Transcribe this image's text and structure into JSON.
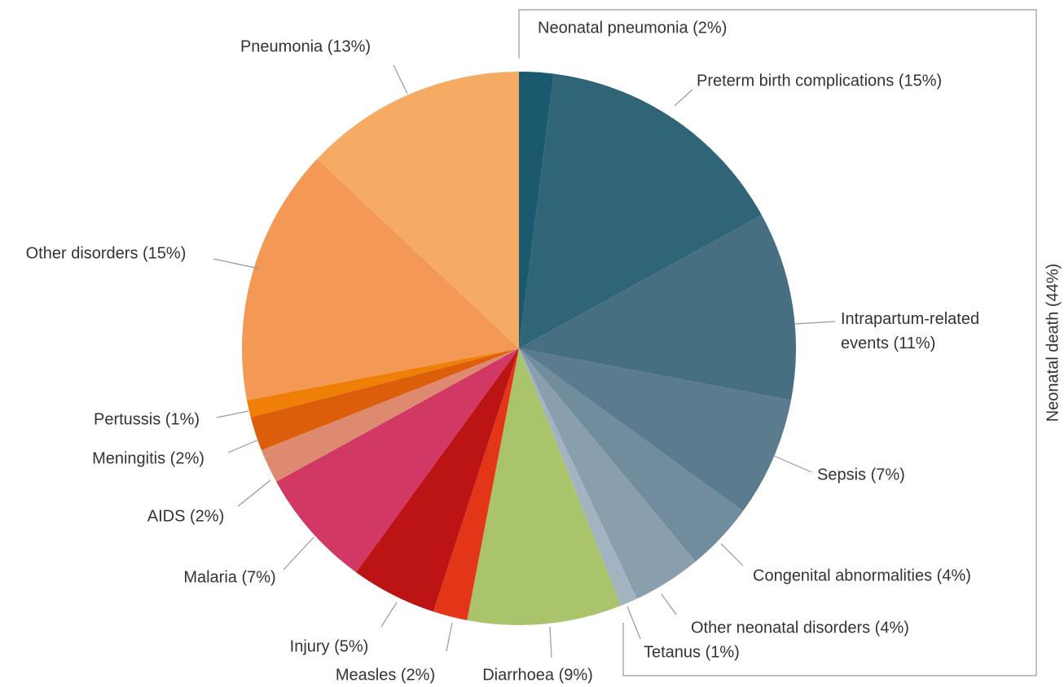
{
  "chart_data": {
    "type": "pie",
    "categories": [
      "Neonatal pneumonia (2%)",
      "Preterm birth complications (15%)",
      [
        "Intrapartum-related",
        "events (11%)"
      ],
      "Sepsis (7%)",
      "Congenital abnormalities (4%)",
      "Other neonatal disorders (4%)",
      "Tetanus (1%)",
      "Diarrhoea (9%)",
      "Measles (2%)",
      "Injury (5%)",
      "Malaria (7%)",
      "AIDS (2%)",
      "Meningitis (2%)",
      "Pertussis (1%)",
      "Other disorders (15%)",
      "Pneumonia (13%)"
    ],
    "values": [
      2,
      15,
      11,
      7,
      4,
      4,
      1,
      9,
      2,
      5,
      7,
      2,
      2,
      1,
      15,
      13
    ],
    "colors": [
      "#1b5a6e",
      "#306578",
      "#466f82",
      "#5b7c8f",
      "#718c9d",
      "#8a9fad",
      "#a3b3bf",
      "#a9c46a",
      "#e33618",
      "#bc1414",
      "#d13864",
      "#de8a70",
      "#dc5e0a",
      "#ef7f06",
      "#f39855",
      "#f6ab65"
    ],
    "annotation": "Neonatal death (44%)"
  }
}
